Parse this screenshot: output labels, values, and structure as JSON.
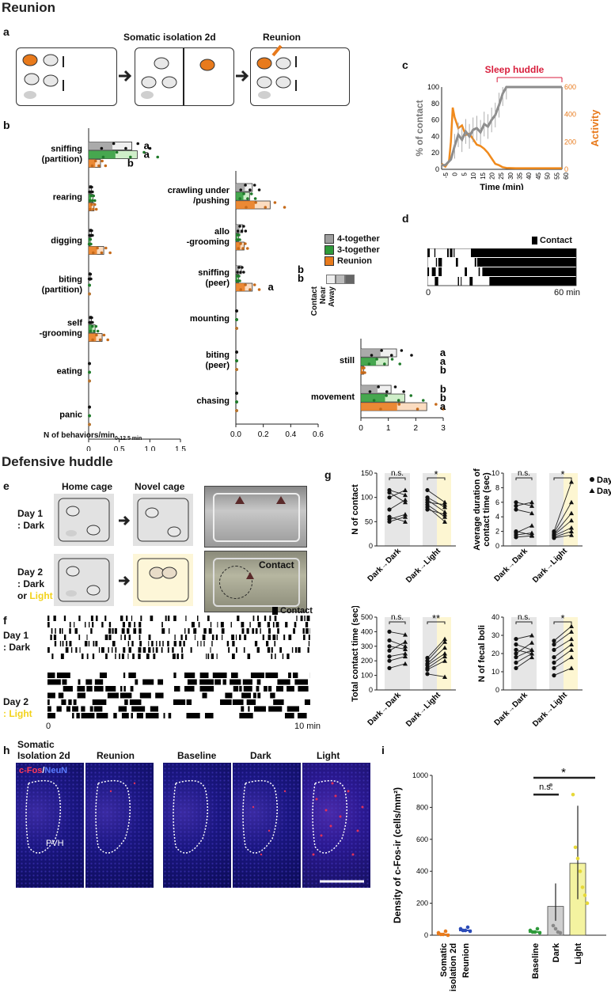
{
  "sections": {
    "reunion": "Reunion",
    "defensive": "Defensive huddle"
  },
  "panels": {
    "a": "a",
    "b": "b",
    "c": "c",
    "d": "d",
    "e": "e",
    "f": "f",
    "g": "g",
    "h": "h",
    "i": "i"
  },
  "panel_a": {
    "step2": "Somatic isolation 2d",
    "step3": "Reunion"
  },
  "panel_b": {
    "legend": [
      "4-together",
      "3-together",
      "Reunion"
    ],
    "legend_key": [
      "Contact",
      "Near",
      "Away"
    ],
    "xlabel": "N of behaviors/min",
    "xlabel_sub": "0-12.5 min",
    "colors": {
      "four": "#9e9e9e",
      "three": "#2e9a3a",
      "reunion": "#e87a1c"
    }
  },
  "chart_data": [
    {
      "type": "bar",
      "panel": "b-left",
      "categories": [
        "sniffing (partition)",
        "rearing",
        "digging",
        "biting (partition)",
        "self -grooming",
        "eating",
        "panic"
      ],
      "series": [
        {
          "name": "4-together",
          "values": [
            0.8,
            0.05,
            0.05,
            0.03,
            0.05,
            0.0,
            0.0
          ]
        },
        {
          "name": "3-together",
          "values": [
            0.9,
            0.08,
            0.03,
            0.0,
            0.12,
            0.0,
            0.0
          ]
        },
        {
          "name": "Reunion",
          "values": [
            0.22,
            0.1,
            0.28,
            0.0,
            0.25,
            0.0,
            0.0
          ]
        }
      ],
      "letters": {
        "sniffing (partition)": [
          "a",
          "a",
          "b"
        ]
      },
      "xticks": [
        "0",
        "0.5",
        "1.0",
        "1.5"
      ],
      "xlim": [
        0,
        1.7
      ]
    },
    {
      "type": "bar",
      "panel": "b-mid",
      "categories": [
        "crawling under /pushing",
        "allo -grooming",
        "sniffing (peer)",
        "mounting",
        "biting (peer)",
        "chasing"
      ],
      "series": [
        {
          "name": "4-together",
          "values": [
            0.12,
            0.05,
            0.04,
            0.0,
            0.0,
            0.0
          ]
        },
        {
          "name": "3-together",
          "values": [
            0.1,
            0.02,
            0.02,
            0.0,
            0.0,
            0.0
          ]
        },
        {
          "name": "Reunion",
          "values": [
            0.25,
            0.06,
            0.12,
            0.0,
            0.0,
            0.0
          ]
        }
      ],
      "letters": {
        "sniffing (peer)": [
          "b",
          "b",
          "a"
        ]
      },
      "xticks": [
        "0.0",
        "0.2",
        "0.4",
        "0.6"
      ],
      "xlim": [
        0,
        0.6
      ]
    },
    {
      "type": "bar",
      "panel": "b-right",
      "categories": [
        "still",
        "movement"
      ],
      "series": [
        {
          "name": "4-together",
          "values": [
            1.3,
            1.1
          ]
        },
        {
          "name": "3-together",
          "values": [
            1.0,
            1.6
          ]
        },
        {
          "name": "Reunion",
          "values": [
            0.1,
            2.4
          ]
        }
      ],
      "letters": {
        "still": [
          "a",
          "a",
          "b"
        ],
        "movement": [
          "b",
          "b",
          "a"
        ]
      },
      "xticks": [
        "0",
        "1",
        "2",
        "3"
      ],
      "xlim": [
        0,
        3
      ]
    },
    {
      "type": "line",
      "panel": "c",
      "title": "Sleep huddle",
      "xlabel": "Time (min)",
      "ylabel": "% of contact",
      "y2label": "Activity",
      "xticks": [
        "-5",
        "0",
        "5",
        "10",
        "15",
        "20",
        "25",
        "30",
        "35",
        "40",
        "45",
        "50",
        "55",
        "60"
      ],
      "yticks": [
        "0",
        "20",
        "40",
        "60",
        "80",
        "100"
      ],
      "y2ticks": [
        "0",
        "200",
        "400",
        "600"
      ],
      "series": [
        {
          "name": "% of contact",
          "x": [
            -5,
            -3,
            0,
            2,
            4,
            6,
            8,
            10,
            12,
            14,
            16,
            18,
            20,
            22,
            24,
            26,
            28,
            30,
            35,
            40,
            45,
            50,
            55,
            60
          ],
          "values": [
            5,
            5,
            12,
            28,
            42,
            36,
            46,
            40,
            48,
            50,
            45,
            55,
            52,
            60,
            66,
            78,
            92,
            100,
            100,
            100,
            100,
            100,
            100,
            100
          ]
        },
        {
          "name": "Activity",
          "x": [
            -5,
            -3,
            -1,
            0,
            1,
            2,
            4,
            6,
            8,
            10,
            12,
            14,
            16,
            18,
            20,
            22,
            24,
            26,
            28,
            30,
            35,
            40,
            45,
            50,
            55,
            60
          ],
          "values": [
            40,
            20,
            60,
            200,
            450,
            380,
            300,
            320,
            250,
            260,
            220,
            180,
            170,
            150,
            120,
            80,
            40,
            30,
            15,
            10,
            8,
            8,
            8,
            8,
            8,
            8
          ]
        }
      ],
      "xlim": [
        -5,
        60
      ],
      "ylim": [
        0,
        100
      ],
      "y2lim": [
        0,
        600
      ]
    },
    {
      "type": "line",
      "panel": "g-left",
      "ylabel": "N of contact",
      "categories": [
        "Dark→Dark",
        "Dark→Light"
      ],
      "yticks": [
        "0",
        "50",
        "100",
        "150"
      ],
      "ylim": [
        0,
        150
      ],
      "sig": [
        "n.s.",
        "*"
      ],
      "pairs_dd": [
        [
          115,
          105
        ],
        [
          110,
          90
        ],
        [
          100,
          115
        ],
        [
          75,
          95
        ],
        [
          60,
          50
        ],
        [
          55,
          65
        ],
        [
          50,
          60
        ]
      ],
      "pairs_dl": [
        [
          115,
          90
        ],
        [
          100,
          80
        ],
        [
          95,
          70
        ],
        [
          90,
          85
        ],
        [
          85,
          60
        ],
        [
          80,
          50
        ],
        [
          75,
          65
        ]
      ]
    },
    {
      "type": "line",
      "panel": "g-right",
      "ylabel": "Average duration of contact time (sec)",
      "categories": [
        "Dark→Dark",
        "Dark→Light"
      ],
      "yticks": [
        "0",
        "2",
        "4",
        "6",
        "8",
        "10"
      ],
      "ylim": [
        0,
        10
      ],
      "sig": [
        "n.s.",
        "*"
      ],
      "legend": [
        "Day 1",
        "Day 2"
      ],
      "pairs_dd": [
        [
          6,
          5.5
        ],
        [
          5.5,
          6
        ],
        [
          5,
          4.5
        ],
        [
          2,
          1.5
        ],
        [
          1.8,
          2.8
        ],
        [
          1.5,
          1.8
        ],
        [
          1.2,
          1.4
        ]
      ],
      "pairs_dl": [
        [
          2,
          8.8
        ],
        [
          1.8,
          6
        ],
        [
          1.6,
          4.5
        ],
        [
          1.5,
          3.5
        ],
        [
          1.4,
          2.5
        ],
        [
          1.2,
          2
        ],
        [
          1.1,
          1.5
        ]
      ]
    },
    {
      "type": "line",
      "panel": "f-mid",
      "ylabel": "Total contact time (sec)",
      "categories": [
        "Dark→Dark",
        "Dark→Light"
      ],
      "yticks": [
        "0",
        "100",
        "200",
        "300",
        "400",
        "500"
      ],
      "ylim": [
        0,
        500
      ],
      "sig": [
        "n.s.",
        "**"
      ],
      "pairs_dd": [
        [
          400,
          380
        ],
        [
          340,
          300
        ],
        [
          300,
          280
        ],
        [
          270,
          330
        ],
        [
          230,
          250
        ],
        [
          200,
          230
        ],
        [
          150,
          180
        ]
      ],
      "pairs_dl": [
        [
          220,
          350
        ],
        [
          200,
          330
        ],
        [
          180,
          290
        ],
        [
          170,
          250
        ],
        [
          150,
          230
        ],
        [
          140,
          200
        ],
        [
          110,
          90
        ]
      ]
    },
    {
      "type": "line",
      "panel": "f-right",
      "ylabel": "N of fecal boli",
      "categories": [
        "Dark→Dark",
        "Dark→Light"
      ],
      "yticks": [
        "0",
        "10",
        "20",
        "30",
        "40"
      ],
      "ylim": [
        0,
        40
      ],
      "sig": [
        "n.s.",
        "*"
      ],
      "pairs_dd": [
        [
          28,
          30
        ],
        [
          25,
          22
        ],
        [
          22,
          20
        ],
        [
          20,
          26
        ],
        [
          18,
          22
        ],
        [
          15,
          20
        ],
        [
          12,
          18
        ]
      ],
      "pairs_dl": [
        [
          27,
          35
        ],
        [
          25,
          32
        ],
        [
          22,
          28
        ],
        [
          18,
          25
        ],
        [
          15,
          22
        ],
        [
          12,
          18
        ],
        [
          8,
          12
        ]
      ]
    },
    {
      "type": "bar",
      "panel": "i",
      "ylabel": "Density of c-Fos-ir (cells/mm²)",
      "categories": [
        "Somatic isolation 2d",
        "Reunion",
        "Baseline",
        "Dark",
        "Light"
      ],
      "values": [
        5,
        30,
        20,
        180,
        450
      ],
      "yticks": [
        "0",
        "200",
        "400",
        "600",
        "800",
        "1000"
      ],
      "ylim": [
        0,
        1000
      ],
      "sig": [
        "n.s.",
        "*"
      ]
    }
  ],
  "panel_d": {
    "legend": "Contact",
    "x0": "0",
    "x1": "60 min"
  },
  "panel_e": {
    "home": "Home cage",
    "novel": "Novel cage",
    "day1": "Day 1",
    "day1_cond": ": Dark",
    "day2": "Day 2",
    "day2_cond1": ": Dark",
    "day2_or": "or",
    "day2_light": "Light",
    "contact": "Contact"
  },
  "panel_f": {
    "legend": "Contact",
    "day1": "Day 1",
    "day1_cond": ": Dark",
    "day2": "Day 2",
    "day2_cond": ": Light",
    "x0": "0",
    "x1": "10 min"
  },
  "panel_h": {
    "titles": [
      "Somatic",
      "Isolation 2d",
      "Reunion",
      "Baseline",
      "Dark",
      "Light"
    ],
    "cfos": "c-Fos",
    "slash": "/",
    "neun": "NeuN",
    "pvh": "PVH"
  }
}
